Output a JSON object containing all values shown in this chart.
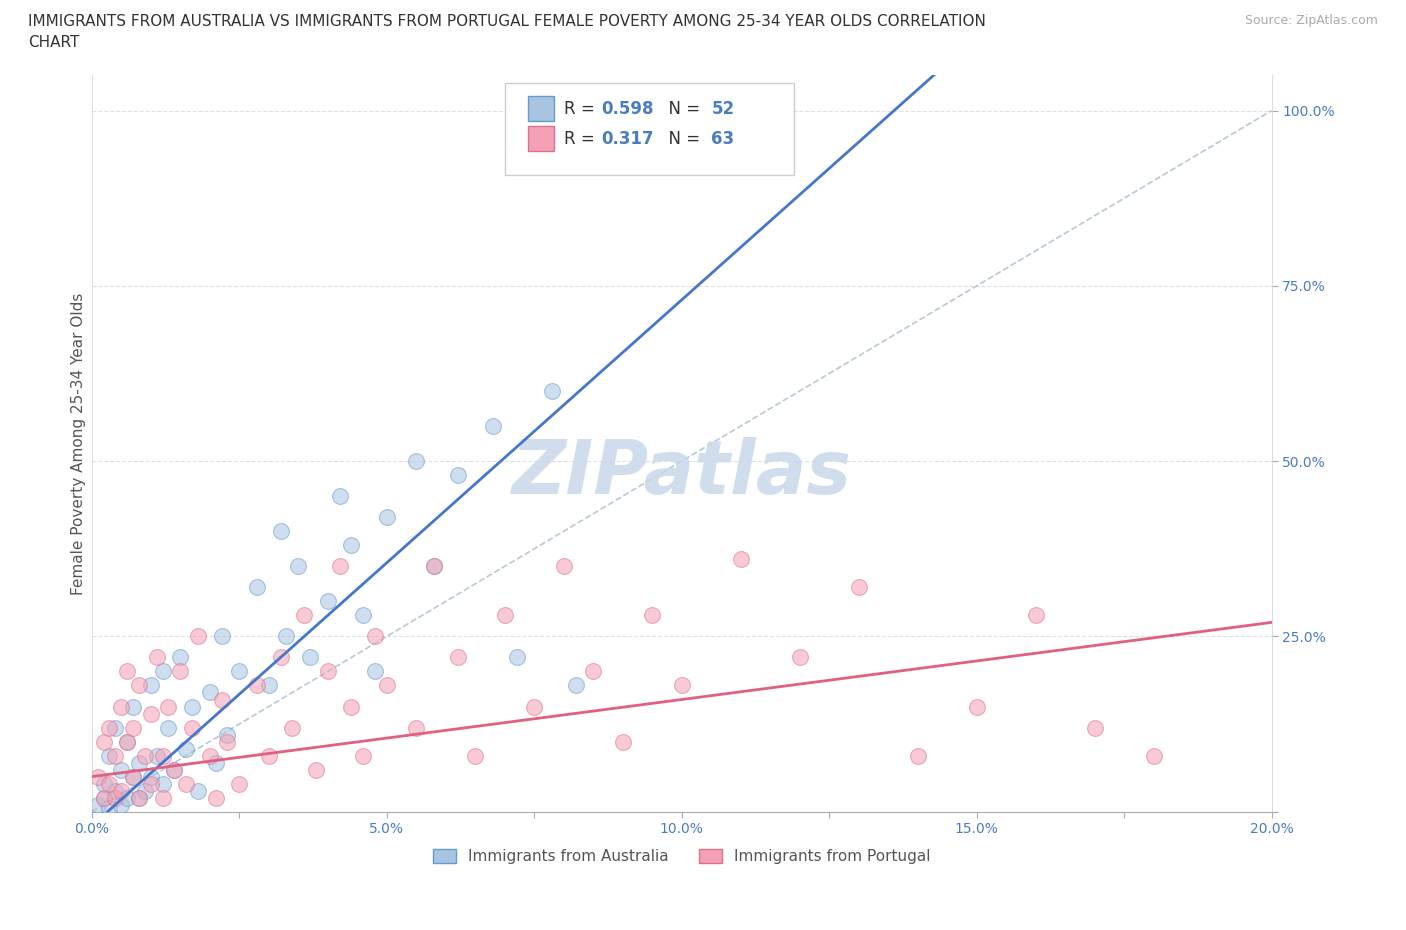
{
  "title_line1": "IMMIGRANTS FROM AUSTRALIA VS IMMIGRANTS FROM PORTUGAL FEMALE POVERTY AMONG 25-34 YEAR OLDS CORRELATION",
  "title_line2": "CHART",
  "source": "Source: ZipAtlas.com",
  "ylabel": "Female Poverty Among 25-34 Year Olds",
  "xlim": [
    0.0,
    0.2
  ],
  "ylim": [
    0.0,
    1.05
  ],
  "yticks": [
    0.0,
    0.25,
    0.5,
    0.75,
    1.0
  ],
  "yticklabels": [
    "",
    "25.0%",
    "50.0%",
    "75.0%",
    "100.0%"
  ],
  "xticks": [
    0.0,
    0.025,
    0.05,
    0.075,
    0.1,
    0.125,
    0.15,
    0.175,
    0.2
  ],
  "xticklabels": [
    "0.0%",
    "",
    "5.0%",
    "",
    "10.0%",
    "",
    "15.0%",
    "",
    "20.0%"
  ],
  "australia_color": "#a8c4e0",
  "portugal_color": "#f4a0b5",
  "australia_edge": "#6699cc",
  "portugal_edge": "#e07090",
  "line_australia_color": "#4477cc",
  "line_portugal_color": "#e06080",
  "ref_line_color": "#b8c8d8",
  "R_australia": 0.598,
  "N_australia": 52,
  "R_portugal": 0.317,
  "N_portugal": 63,
  "watermark": "ZIPatlas",
  "watermark_color": "#c8d8ea",
  "legend_australia": "Immigrants from Australia",
  "legend_portugal": "Immigrants from Portugal",
  "background_color": "#ffffff",
  "grid_color": "#e0e0e0",
  "title_fontsize": 11,
  "axis_label_fontsize": 11,
  "tick_fontsize": 10,
  "scatter_alpha": 0.55,
  "scatter_size": 130,
  "aus_line_slope": 7.5,
  "aus_line_intercept": -0.02,
  "por_line_slope": 1.1,
  "por_line_intercept": 0.05
}
